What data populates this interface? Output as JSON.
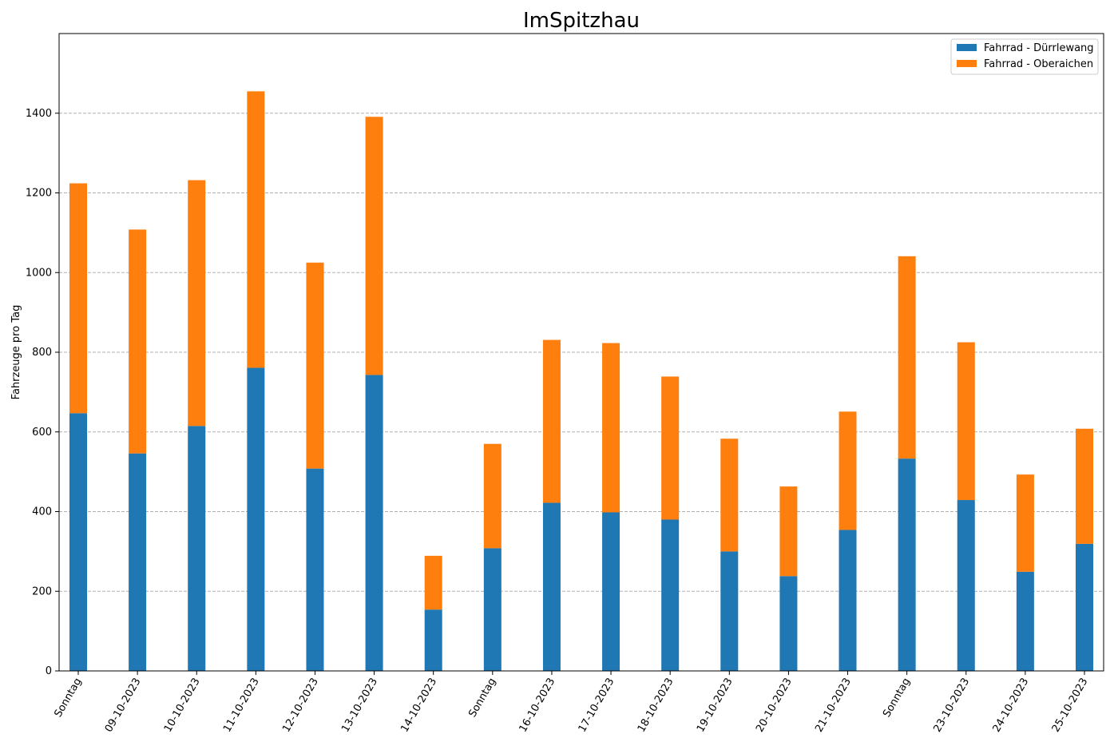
{
  "chart_data": {
    "type": "bar",
    "stacked": true,
    "title": "ImSpitzhau",
    "xlabel": "",
    "ylabel": "Fahrzeuge pro Tag",
    "ylim": [
      0,
      1600
    ],
    "yticks": [
      0,
      200,
      400,
      600,
      800,
      1000,
      1200,
      1400
    ],
    "grid": "y-dashed",
    "legend_position": "top-right",
    "categories": [
      "Sonntag",
      "09-10-2023",
      "10-10-2023",
      "11-10-2023",
      "12-10-2023",
      "13-10-2023",
      "14-10-2023",
      "Sonntag",
      "16-10-2023",
      "17-10-2023",
      "18-10-2023",
      "19-10-2023",
      "20-10-2023",
      "21-10-2023",
      "Sonntag",
      "23-10-2023",
      "24-10-2023",
      "25-10-2023"
    ],
    "series": [
      {
        "name": "Fahrrad - Dürrlewang",
        "color": "#1f77b4",
        "values": [
          647,
          546,
          615,
          761,
          508,
          743,
          154,
          308,
          422,
          398,
          380,
          300,
          238,
          354,
          533,
          429,
          249,
          319
        ]
      },
      {
        "name": "Fahrrad - Oberaichen",
        "color": "#ff7f0e",
        "values": [
          577,
          562,
          617,
          694,
          517,
          648,
          135,
          262,
          409,
          425,
          359,
          283,
          225,
          297,
          508,
          396,
          244,
          289
        ]
      }
    ]
  }
}
